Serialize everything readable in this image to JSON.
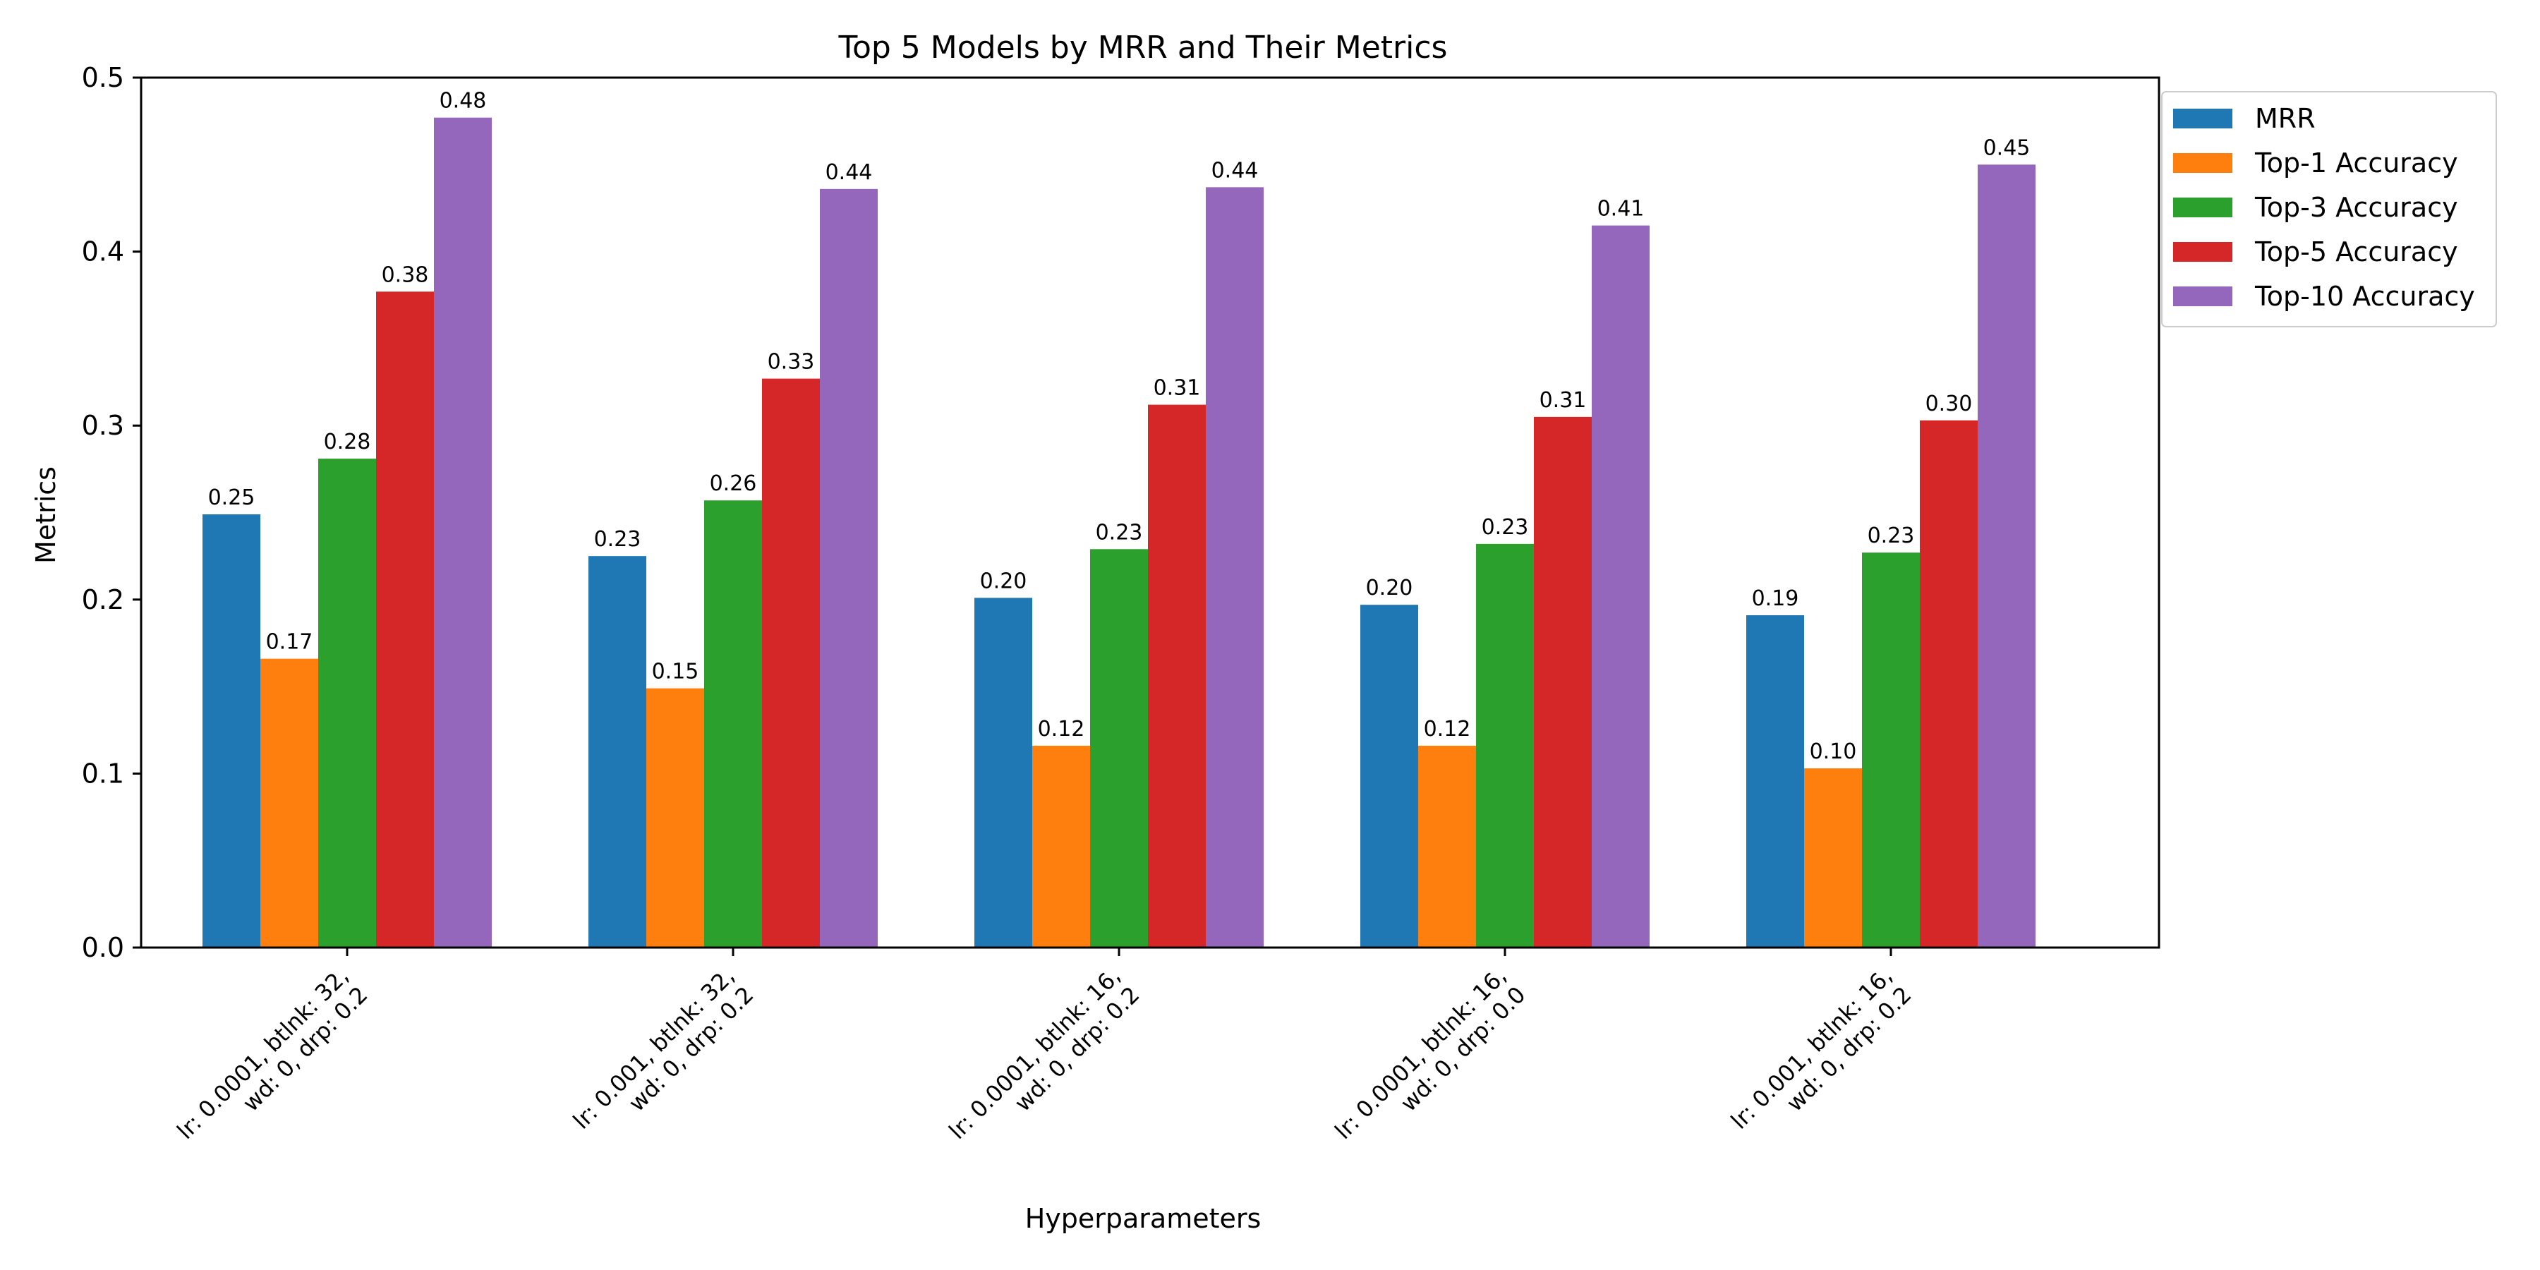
{
  "chart_data": {
    "type": "bar",
    "title": "Top 5 Models by MRR and Their Metrics",
    "xlabel": "Hyperparameters",
    "ylabel": "Metrics",
    "ylim": [
      0,
      0.5
    ],
    "yticks": [
      "0.0",
      "0.1",
      "0.2",
      "0.3",
      "0.4",
      "0.5"
    ],
    "categories": [
      [
        "lr: 0.0001, btlnk: 32,",
        "wd: 0, drp: 0.2"
      ],
      [
        "lr: 0.001, btlnk: 32,",
        "wd: 0, drp: 0.2"
      ],
      [
        "lr: 0.0001, btlnk: 16,",
        "wd: 0, drp: 0.2"
      ],
      [
        "lr: 0.0001, btlnk: 16,",
        "wd: 0, drp: 0.0"
      ],
      [
        "lr: 0.001, btlnk: 16,",
        "wd: 0, drp: 0.2"
      ]
    ],
    "series": [
      {
        "name": "MRR",
        "color": "#1f77b4",
        "values": [
          0.249,
          0.225,
          0.201,
          0.197,
          0.191
        ],
        "labels": [
          "0.25",
          "0.23",
          "0.20",
          "0.20",
          "0.19"
        ]
      },
      {
        "name": "Top-1 Accuracy",
        "color": "#ff7f0e",
        "values": [
          0.166,
          0.149,
          0.116,
          0.116,
          0.103
        ],
        "labels": [
          "0.17",
          "0.15",
          "0.12",
          "0.12",
          "0.10"
        ]
      },
      {
        "name": "Top-3 Accuracy",
        "color": "#2ca02c",
        "values": [
          0.281,
          0.257,
          0.229,
          0.232,
          0.227
        ],
        "labels": [
          "0.28",
          "0.26",
          "0.23",
          "0.23",
          "0.23"
        ]
      },
      {
        "name": "Top-5 Accuracy",
        "color": "#d62728",
        "values": [
          0.377,
          0.327,
          0.312,
          0.305,
          0.303
        ],
        "labels": [
          "0.38",
          "0.33",
          "0.31",
          "0.31",
          "0.30"
        ]
      },
      {
        "name": "Top-10 Accuracy",
        "color": "#9467bd",
        "values": [
          0.477,
          0.436,
          0.437,
          0.415,
          0.45
        ],
        "labels": [
          "0.48",
          "0.44",
          "0.44",
          "0.41",
          "0.45"
        ]
      }
    ],
    "legend_position": "outside-top-right",
    "grid": false
  }
}
